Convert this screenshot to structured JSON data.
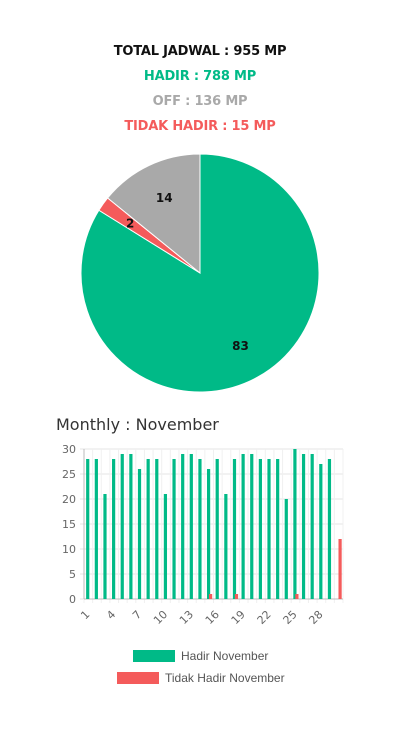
{
  "summary": {
    "total": "TOTAL JADWAL : 955 MP",
    "hadir": "HADIR : 788 MP",
    "off": "OFF : 136 MP",
    "tidak_hadir": "TIDAK HADIR : 15 MP"
  },
  "colors": {
    "hadir": "#00BA87",
    "off": "#A9A9A9",
    "tidak_hadir": "#F45B5B",
    "total": "#111111"
  },
  "monthly": {
    "title": "Monthly : November"
  },
  "chart_data": [
    {
      "type": "pie",
      "slices": [
        {
          "label": "83",
          "value": 83,
          "color": "#00BA87"
        },
        {
          "label": "2",
          "value": 2,
          "color": "#F45B5B"
        },
        {
          "label": "14",
          "value": 14,
          "color": "#A9A9A9"
        }
      ]
    },
    {
      "type": "bar",
      "categories": [
        "1",
        "2",
        "3",
        "4",
        "5",
        "6",
        "7",
        "8",
        "9",
        "10",
        "11",
        "12",
        "13",
        "14",
        "15",
        "16",
        "17",
        "18",
        "19",
        "20",
        "21",
        "22",
        "23",
        "24",
        "25",
        "26",
        "27",
        "28",
        "29",
        "30"
      ],
      "tick_labels": [
        "1",
        "4",
        "7",
        "10",
        "13",
        "16",
        "19",
        "22",
        "25",
        "28"
      ],
      "y_ticks": [
        "0",
        "5",
        "10",
        "15",
        "20",
        "25",
        "30"
      ],
      "ylim": [
        0,
        30
      ],
      "series": [
        {
          "name": "Hadir November",
          "color": "#00BA87",
          "values": [
            28,
            28,
            21,
            28,
            29,
            29,
            26,
            28,
            28,
            21,
            28,
            29,
            29,
            28,
            26,
            28,
            21,
            28,
            29,
            29,
            28,
            28,
            28,
            20,
            30,
            29,
            29,
            27,
            28,
            0
          ]
        },
        {
          "name": "Tidak Hadir November",
          "color": "#F45B5B",
          "values": [
            0,
            0,
            0,
            0,
            0,
            0,
            0,
            0,
            0,
            0,
            0,
            0,
            0,
            0,
            1,
            0,
            0,
            1,
            0,
            0,
            0,
            0,
            0,
            0,
            1,
            0,
            0,
            0,
            0,
            12
          ]
        }
      ],
      "grid": true
    }
  ]
}
